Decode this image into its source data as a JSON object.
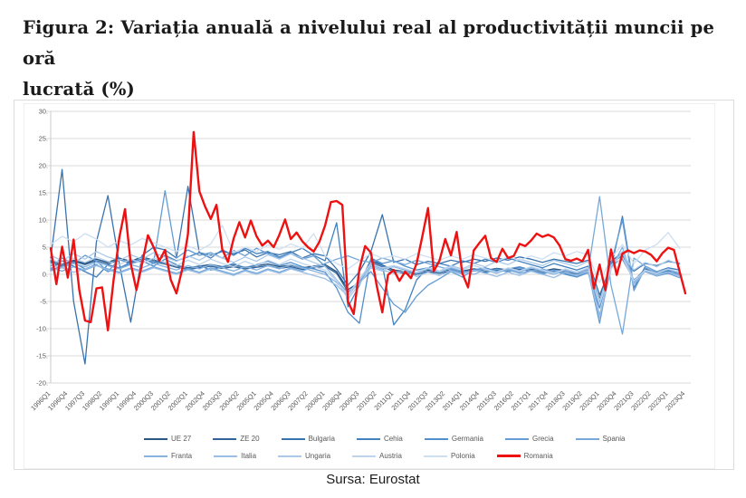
{
  "title": {
    "line1": "Figura 2: Variația anuală a nivelului real al productivității muncii pe oră",
    "line2": "lucrată (%)"
  },
  "source": {
    "text": "Sursa: Eurostat"
  },
  "chart_data": {
    "type": "line",
    "title": "Variația anuală a nivelului real al productivității muncii pe oră lucrată (%)",
    "x_unit": "quarter",
    "x_start": "1996Q1",
    "x_end": "2023Q4",
    "x_tick_labels": [
      "1996Q1",
      "1996Q4",
      "1997Q3",
      "1998Q2",
      "1999Q1",
      "1999Q4",
      "2000Q3",
      "2001Q2",
      "2002Q1",
      "2002Q4",
      "2003Q3",
      "2004Q2",
      "2005Q1",
      "2005Q4",
      "2006Q3",
      "2007Q2",
      "2008Q1",
      "2008Q4",
      "2009Q3",
      "2010Q2",
      "2011Q1",
      "2011Q4",
      "2012Q3",
      "2013Q2",
      "2014Q1",
      "2014Q4",
      "2015Q3",
      "2016Q2",
      "2017Q1",
      "2017Q4",
      "2018Q3",
      "2019Q2",
      "2020Q1",
      "2020Q4",
      "2021Q3",
      "2022Q2",
      "2023Q1",
      "2023Q4"
    ],
    "x_label_rotation": -45,
    "ylim": [
      -20,
      30
    ],
    "y_ticks": [
      30,
      25,
      20,
      15,
      10,
      5,
      0,
      -5,
      -10,
      -15,
      -20
    ],
    "y_tick_labels": [
      "30.",
      "25.",
      "20.",
      "15.",
      "10.",
      "5.",
      "0.",
      "-5.",
      "-10.",
      "-15.",
      "-20."
    ],
    "grid": "horizontal",
    "grid_color": "#d9d9d9",
    "axis_color": "#c9c9c9",
    "label_color": "#595959",
    "legend_position": "bottom",
    "series": [
      {
        "id": "ue27",
        "name": "UE 27",
        "color": "#2A5783",
        "width": 1.4,
        "legend_row": 1,
        "quarters_per_point": 2,
        "values": [
          2.5,
          1.8,
          2.6,
          2.0,
          2.8,
          2.2,
          3.0,
          2.4,
          3.2,
          2.6,
          2.2,
          1.6,
          1.2,
          1.5,
          1.8,
          1.4,
          1.7,
          1.3,
          1.6,
          1.9,
          1.4,
          1.7,
          1.2,
          1.5,
          1.8,
          0.5,
          -2.8,
          -1.5,
          2.5,
          1.7,
          0.8,
          0.5,
          0.3,
          0.8,
          0.5,
          0.9,
          0.6,
          1.0,
          0.7,
          1.1,
          0.8,
          1.2,
          0.9,
          0.6,
          1.0,
          0.7,
          0.4,
          0.9,
          -4.5,
          2.0,
          3.5,
          -1.2,
          1.0,
          0.3,
          0.6,
          0.4
        ]
      },
      {
        "id": "ze20",
        "name": "ZE 20",
        "color": "#31659A",
        "width": 1.4,
        "legend_row": 1,
        "quarters_per_point": 2,
        "values": [
          2.2,
          1.5,
          2.4,
          1.8,
          2.5,
          1.9,
          2.7,
          2.1,
          2.9,
          2.3,
          1.9,
          1.3,
          0.9,
          1.2,
          1.5,
          1.1,
          1.4,
          1.0,
          1.3,
          1.6,
          1.1,
          1.4,
          0.9,
          1.2,
          1.5,
          0.2,
          -3.2,
          -1.8,
          2.2,
          1.4,
          0.5,
          0.2,
          0.0,
          0.5,
          0.2,
          0.6,
          0.3,
          0.7,
          0.4,
          0.8,
          0.5,
          0.9,
          0.6,
          0.3,
          0.7,
          0.4,
          0.1,
          0.6,
          -5.2,
          2.4,
          4.0,
          -1.6,
          0.7,
          0.0,
          0.3,
          0.1
        ]
      },
      {
        "id": "bulgaria",
        "name": "Bulgaria",
        "color": "#3973AE",
        "width": 1.3,
        "legend_row": 1,
        "quarters_per_point": 2,
        "values": [
          3.0,
          19.3,
          -5.0,
          -16.5,
          6.0,
          14.5,
          2.0,
          -8.8,
          3.5,
          5.0,
          4.5,
          3.0,
          16.2,
          4.0,
          3.5,
          4.2,
          3.8,
          4.5,
          3.2,
          4.0,
          3.6,
          4.2,
          3.0,
          3.8,
          3.4,
          1.0,
          -2.0,
          0.5,
          4.2,
          11.0,
          2.2,
          2.8,
          1.8,
          2.4,
          2.0,
          2.6,
          2.2,
          2.8,
          2.4,
          3.0,
          2.6,
          3.2,
          2.8,
          2.2,
          2.8,
          2.4,
          2.0,
          2.6,
          -3.8,
          1.4,
          3.0,
          0.6,
          2.0,
          1.6,
          2.4,
          2.0
        ]
      },
      {
        "id": "cehia",
        "name": "Cehia",
        "color": "#4381BF",
        "width": 1.3,
        "legend_row": 1,
        "quarters_per_point": 2,
        "values": [
          1.0,
          2.5,
          1.5,
          0.5,
          -0.5,
          1.8,
          1.2,
          2.2,
          3.0,
          2.0,
          3.5,
          2.5,
          3.2,
          4.0,
          3.0,
          4.5,
          3.5,
          4.8,
          3.8,
          4.2,
          3.2,
          4.0,
          4.8,
          3.5,
          2.5,
          9.5,
          -6.0,
          -2.0,
          2.8,
          1.8,
          -9.3,
          -6.5,
          -1.0,
          1.2,
          2.0,
          1.5,
          2.5,
          2.0,
          2.8,
          2.2,
          3.0,
          2.4,
          1.8,
          1.2,
          2.0,
          1.4,
          0.8,
          1.5,
          -8.0,
          1.0,
          10.7,
          -2.5,
          1.5,
          0.5,
          1.2,
          0.8
        ]
      },
      {
        "id": "germania",
        "name": "Germania",
        "color": "#538FCB",
        "width": 1.3,
        "legend_row": 1,
        "quarters_per_point": 2,
        "values": [
          0.8,
          1.5,
          2.2,
          1.0,
          1.8,
          0.5,
          1.2,
          2.0,
          2.5,
          1.5,
          2.8,
          1.8,
          1.0,
          1.6,
          0.8,
          1.4,
          2.0,
          1.2,
          1.8,
          2.4,
          1.6,
          2.2,
          1.4,
          1.0,
          0.4,
          -2.5,
          -7.0,
          -9.0,
          3.0,
          2.0,
          2.5,
          1.5,
          0.8,
          1.2,
          0.6,
          1.0,
          0.4,
          0.8,
          1.2,
          0.6,
          1.0,
          1.4,
          0.8,
          0.2,
          0.6,
          0.0,
          -0.5,
          0.3,
          -6.2,
          1.8,
          2.8,
          -1.0,
          0.5,
          -0.3,
          0.2,
          -0.6
        ]
      },
      {
        "id": "grecia",
        "name": "Grecia",
        "color": "#649CD3",
        "width": 1.3,
        "legend_row": 1,
        "quarters_per_point": 2,
        "values": [
          1.5,
          3.0,
          2.0,
          3.5,
          2.5,
          0.5,
          2.8,
          1.8,
          3.2,
          2.2,
          15.4,
          3.0,
          4.5,
          3.5,
          4.0,
          3.0,
          4.4,
          3.4,
          4.8,
          3.8,
          3.0,
          3.8,
          2.8,
          3.4,
          1.5,
          -1.0,
          -3.5,
          -1.5,
          0.5,
          -2.5,
          -5.5,
          -7.0,
          -4.0,
          -2.0,
          -0.8,
          0.5,
          -0.5,
          0.8,
          0.2,
          1.0,
          0.4,
          1.2,
          0.6,
          0.0,
          0.8,
          0.2,
          -0.4,
          0.6,
          -9.0,
          2.0,
          10.0,
          -3.0,
          1.2,
          0.2,
          0.8,
          0.0
        ]
      },
      {
        "id": "spania",
        "name": "Spania",
        "color": "#76A8DA",
        "width": 1.3,
        "legend_row": 1,
        "quarters_per_point": 2,
        "values": [
          1.2,
          0.6,
          1.4,
          0.8,
          1.6,
          1.0,
          0.4,
          1.2,
          0.6,
          1.4,
          0.8,
          0.2,
          1.0,
          0.4,
          1.2,
          0.6,
          0.0,
          0.8,
          0.2,
          1.0,
          0.4,
          1.2,
          0.6,
          1.4,
          2.0,
          2.8,
          3.4,
          2.6,
          2.2,
          3.0,
          2.4,
          1.8,
          2.6,
          2.0,
          1.4,
          0.8,
          0.2,
          0.6,
          1.0,
          0.4,
          0.8,
          0.2,
          0.6,
          1.0,
          0.4,
          0.8,
          0.2,
          0.6,
          14.3,
          -2.0,
          -11.0,
          3.0,
          1.5,
          0.5,
          1.0,
          0.2
        ]
      },
      {
        "id": "franta",
        "name": "Franta",
        "color": "#88B3E0",
        "width": 1.3,
        "legend_row": 2,
        "quarters_per_point": 2,
        "values": [
          1.8,
          1.2,
          2.0,
          1.4,
          2.2,
          1.6,
          1.0,
          1.8,
          1.2,
          2.0,
          1.4,
          0.8,
          1.6,
          1.0,
          1.8,
          1.2,
          0.6,
          1.4,
          0.8,
          1.6,
          1.0,
          1.8,
          1.2,
          0.6,
          0.0,
          -1.5,
          -3.5,
          -1.0,
          1.8,
          1.0,
          1.4,
          0.8,
          0.2,
          1.0,
          0.4,
          1.2,
          0.6,
          0.0,
          0.8,
          0.2,
          1.0,
          0.4,
          1.2,
          0.6,
          0.0,
          0.8,
          0.2,
          1.0,
          -7.5,
          1.2,
          5.0,
          -1.5,
          0.8,
          0.0,
          0.5,
          -0.2
        ]
      },
      {
        "id": "italia",
        "name": "Italia",
        "color": "#9ABEE5",
        "width": 1.3,
        "legend_row": 2,
        "quarters_per_point": 2,
        "values": [
          0.6,
          1.2,
          0.4,
          1.0,
          1.6,
          0.8,
          0.2,
          1.0,
          0.4,
          1.2,
          0.6,
          0.0,
          0.8,
          0.2,
          1.0,
          0.4,
          -0.2,
          0.6,
          0.0,
          0.8,
          0.2,
          1.0,
          0.4,
          -0.2,
          -0.8,
          -2.0,
          -4.0,
          -1.2,
          1.5,
          0.8,
          0.2,
          0.6,
          -0.4,
          0.4,
          -0.2,
          0.6,
          0.0,
          0.8,
          0.2,
          -0.4,
          0.4,
          -0.2,
          0.6,
          0.0,
          -0.6,
          0.4,
          -0.2,
          0.6,
          -8.0,
          1.5,
          4.2,
          -1.8,
          0.6,
          -0.2,
          0.4,
          -0.5
        ]
      },
      {
        "id": "ungaria",
        "name": "Ungaria",
        "color": "#ABC9EA",
        "width": 1.3,
        "legend_row": 2,
        "quarters_per_point": 2,
        "values": [
          3.5,
          2.5,
          3.8,
          2.8,
          4.2,
          3.2,
          2.6,
          3.6,
          2.8,
          4.0,
          3.2,
          2.4,
          3.4,
          2.6,
          3.8,
          3.0,
          2.2,
          3.2,
          2.4,
          3.6,
          2.8,
          3.8,
          3.0,
          2.2,
          1.4,
          -1.0,
          -4.5,
          -1.8,
          1.2,
          0.6,
          1.6,
          1.0,
          0.4,
          1.2,
          0.6,
          1.6,
          1.0,
          2.0,
          1.4,
          2.4,
          1.8,
          2.8,
          2.2,
          1.6,
          2.6,
          2.0,
          1.4,
          2.4,
          -4.8,
          1.6,
          3.8,
          0.8,
          2.2,
          1.4,
          2.6,
          1.8
        ]
      },
      {
        "id": "austria",
        "name": "Austria",
        "color": "#BDD4EE",
        "width": 1.3,
        "legend_row": 2,
        "quarters_per_point": 2,
        "values": [
          2.8,
          2.0,
          3.0,
          2.2,
          3.2,
          2.4,
          1.8,
          2.8,
          2.0,
          3.0,
          2.2,
          1.6,
          2.6,
          1.8,
          2.8,
          2.0,
          1.4,
          2.4,
          1.6,
          2.6,
          1.8,
          2.8,
          2.0,
          1.4,
          0.8,
          -1.2,
          -3.8,
          -0.8,
          2.0,
          1.2,
          1.6,
          1.0,
          0.4,
          1.2,
          0.6,
          1.4,
          0.8,
          1.6,
          1.0,
          0.4,
          1.2,
          0.6,
          1.4,
          0.8,
          0.2,
          1.0,
          0.4,
          1.2,
          -5.5,
          1.0,
          3.2,
          -1.2,
          0.8,
          0.2,
          1.0,
          0.4
        ]
      },
      {
        "id": "polonia",
        "name": "Polonia",
        "color": "#CEDFF2",
        "width": 1.3,
        "legend_row": 2,
        "quarters_per_point": 2,
        "values": [
          5.5,
          7.0,
          6.0,
          7.5,
          6.5,
          5.0,
          6.2,
          5.4,
          6.6,
          5.8,
          5.0,
          4.2,
          5.2,
          4.4,
          5.6,
          9.0,
          4.0,
          5.0,
          4.2,
          5.4,
          4.6,
          5.6,
          4.8,
          7.5,
          3.4,
          2.0,
          1.0,
          2.5,
          3.8,
          3.0,
          3.4,
          2.8,
          3.8,
          3.2,
          2.6,
          3.4,
          2.8,
          3.6,
          3.0,
          2.4,
          3.2,
          2.6,
          3.4,
          2.8,
          4.0,
          3.4,
          4.2,
          3.6,
          -1.5,
          3.0,
          5.5,
          2.0,
          4.5,
          5.5,
          7.7,
          4.8
        ]
      },
      {
        "id": "romania",
        "name": "Romania",
        "color": "#EE1111",
        "width": 2.4,
        "legend_row": 2,
        "quarters_per_point": 1,
        "values": [
          4.8,
          -1.8,
          5.1,
          -0.6,
          6.4,
          -2.9,
          -8.5,
          -8.8,
          -2.6,
          -2.4,
          -10.3,
          -1.0,
          6.8,
          12.0,
          2.0,
          -2.9,
          2.0,
          7.2,
          5.0,
          2.5,
          4.5,
          -1.0,
          -3.5,
          1.0,
          7.4,
          26.2,
          15.3,
          12.5,
          10.2,
          12.8,
          4.6,
          2.3,
          6.6,
          9.6,
          6.8,
          9.9,
          7.0,
          5.3,
          6.2,
          5.0,
          7.3,
          10.1,
          6.5,
          7.7,
          6.1,
          5.0,
          4.2,
          6.0,
          9.0,
          13.3,
          13.5,
          12.8,
          -5.0,
          -7.3,
          1.0,
          5.2,
          4.0,
          -2.0,
          -7.0,
          -0.1,
          0.8,
          -1.2,
          0.5,
          -0.7,
          2.0,
          7.0,
          12.2,
          0.6,
          2.5,
          6.5,
          3.5,
          7.8,
          0.2,
          -2.4,
          4.4,
          5.8,
          7.1,
          3.0,
          2.3,
          4.7,
          3.0,
          3.4,
          5.6,
          5.2,
          6.2,
          7.5,
          6.9,
          7.3,
          6.8,
          5.3,
          2.8,
          2.5,
          2.9,
          2.4,
          4.5,
          -2.6,
          1.8,
          -2.9,
          4.6,
          -0.1,
          3.8,
          4.4,
          3.9,
          4.4,
          4.2,
          3.6,
          2.4,
          3.9,
          4.9,
          4.5,
          0.5,
          -3.5
        ]
      }
    ]
  }
}
